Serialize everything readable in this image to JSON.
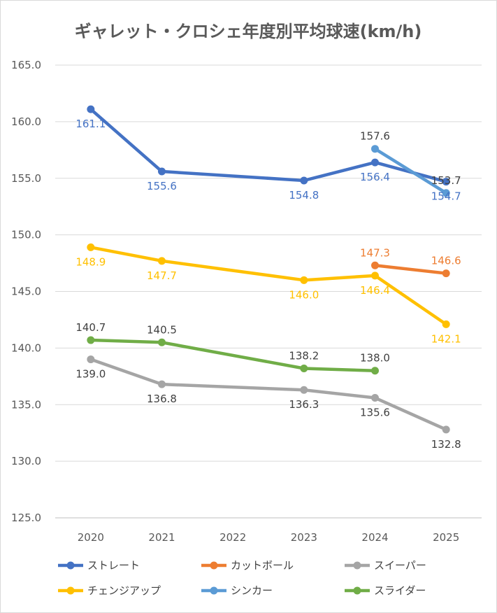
{
  "chart_data": {
    "type": "line",
    "title": "ギャレット・クロシェ年度別平均球速(km/h)",
    "categories": [
      "2020",
      "2021",
      "2022",
      "2023",
      "2024",
      "2025"
    ],
    "ylim": [
      125.0,
      165.0
    ],
    "yticks": [
      "125.0",
      "130.0",
      "135.0",
      "140.0",
      "145.0",
      "150.0",
      "155.0",
      "160.0",
      "165.0"
    ],
    "grid": true,
    "legend_position": "bottom",
    "series": [
      {
        "name": "ストレート",
        "color": "#4472c4",
        "points": [
          {
            "x": "2020",
            "y": 161.1,
            "label": "161.1",
            "pos": "below"
          },
          {
            "x": "2021",
            "y": 155.6,
            "label": "155.6",
            "pos": "below"
          },
          {
            "x": "2023",
            "y": 154.8,
            "label": "154.8",
            "pos": "below"
          },
          {
            "x": "2024",
            "y": 156.4,
            "label": "156.4",
            "pos": "below"
          },
          {
            "x": "2025",
            "y": 154.7,
            "label": "154.7",
            "pos": "below"
          }
        ]
      },
      {
        "name": "カットボール",
        "color": "#ed7d31",
        "points": [
          {
            "x": "2024",
            "y": 147.3,
            "label": "147.3",
            "pos": "above"
          },
          {
            "x": "2025",
            "y": 146.6,
            "label": "146.6",
            "pos": "above"
          }
        ]
      },
      {
        "name": "スイーパー",
        "color": "#a5a5a5",
        "label_color": "#404040",
        "points": [
          {
            "x": "2020",
            "y": 139.0,
            "label": "139.0",
            "pos": "below"
          },
          {
            "x": "2021",
            "y": 136.8,
            "label": "136.8",
            "pos": "below"
          },
          {
            "x": "2023",
            "y": 136.3,
            "label": "136.3",
            "pos": "below"
          },
          {
            "x": "2024",
            "y": 135.6,
            "label": "135.6",
            "pos": "below"
          },
          {
            "x": "2025",
            "y": 132.8,
            "label": "132.8",
            "pos": "below"
          }
        ]
      },
      {
        "name": "チェンジアップ",
        "color": "#ffc000",
        "points": [
          {
            "x": "2020",
            "y": 148.9,
            "label": "148.9",
            "pos": "below"
          },
          {
            "x": "2021",
            "y": 147.7,
            "label": "147.7",
            "pos": "below"
          },
          {
            "x": "2023",
            "y": 146.0,
            "label": "146.0",
            "pos": "below"
          },
          {
            "x": "2024",
            "y": 146.4,
            "label": "146.4",
            "pos": "below"
          },
          {
            "x": "2025",
            "y": 142.1,
            "label": "142.1",
            "pos": "below"
          }
        ]
      },
      {
        "name": "シンカー",
        "color": "#5b9bd5",
        "label_color": "#404040",
        "points": [
          {
            "x": "2024",
            "y": 157.6,
            "label": "157.6",
            "pos": "above"
          },
          {
            "x": "2025",
            "y": 153.7,
            "label": "153.7",
            "pos": "above"
          }
        ]
      },
      {
        "name": "スライダー",
        "color": "#70ad47",
        "label_color": "#404040",
        "points": [
          {
            "x": "2020",
            "y": 140.7,
            "label": "140.7",
            "pos": "above"
          },
          {
            "x": "2021",
            "y": 140.5,
            "label": "140.5",
            "pos": "above"
          },
          {
            "x": "2023",
            "y": 138.2,
            "label": "138.2",
            "pos": "above"
          },
          {
            "x": "2024",
            "y": 138.0,
            "label": "138.0",
            "pos": "above"
          }
        ]
      }
    ]
  }
}
